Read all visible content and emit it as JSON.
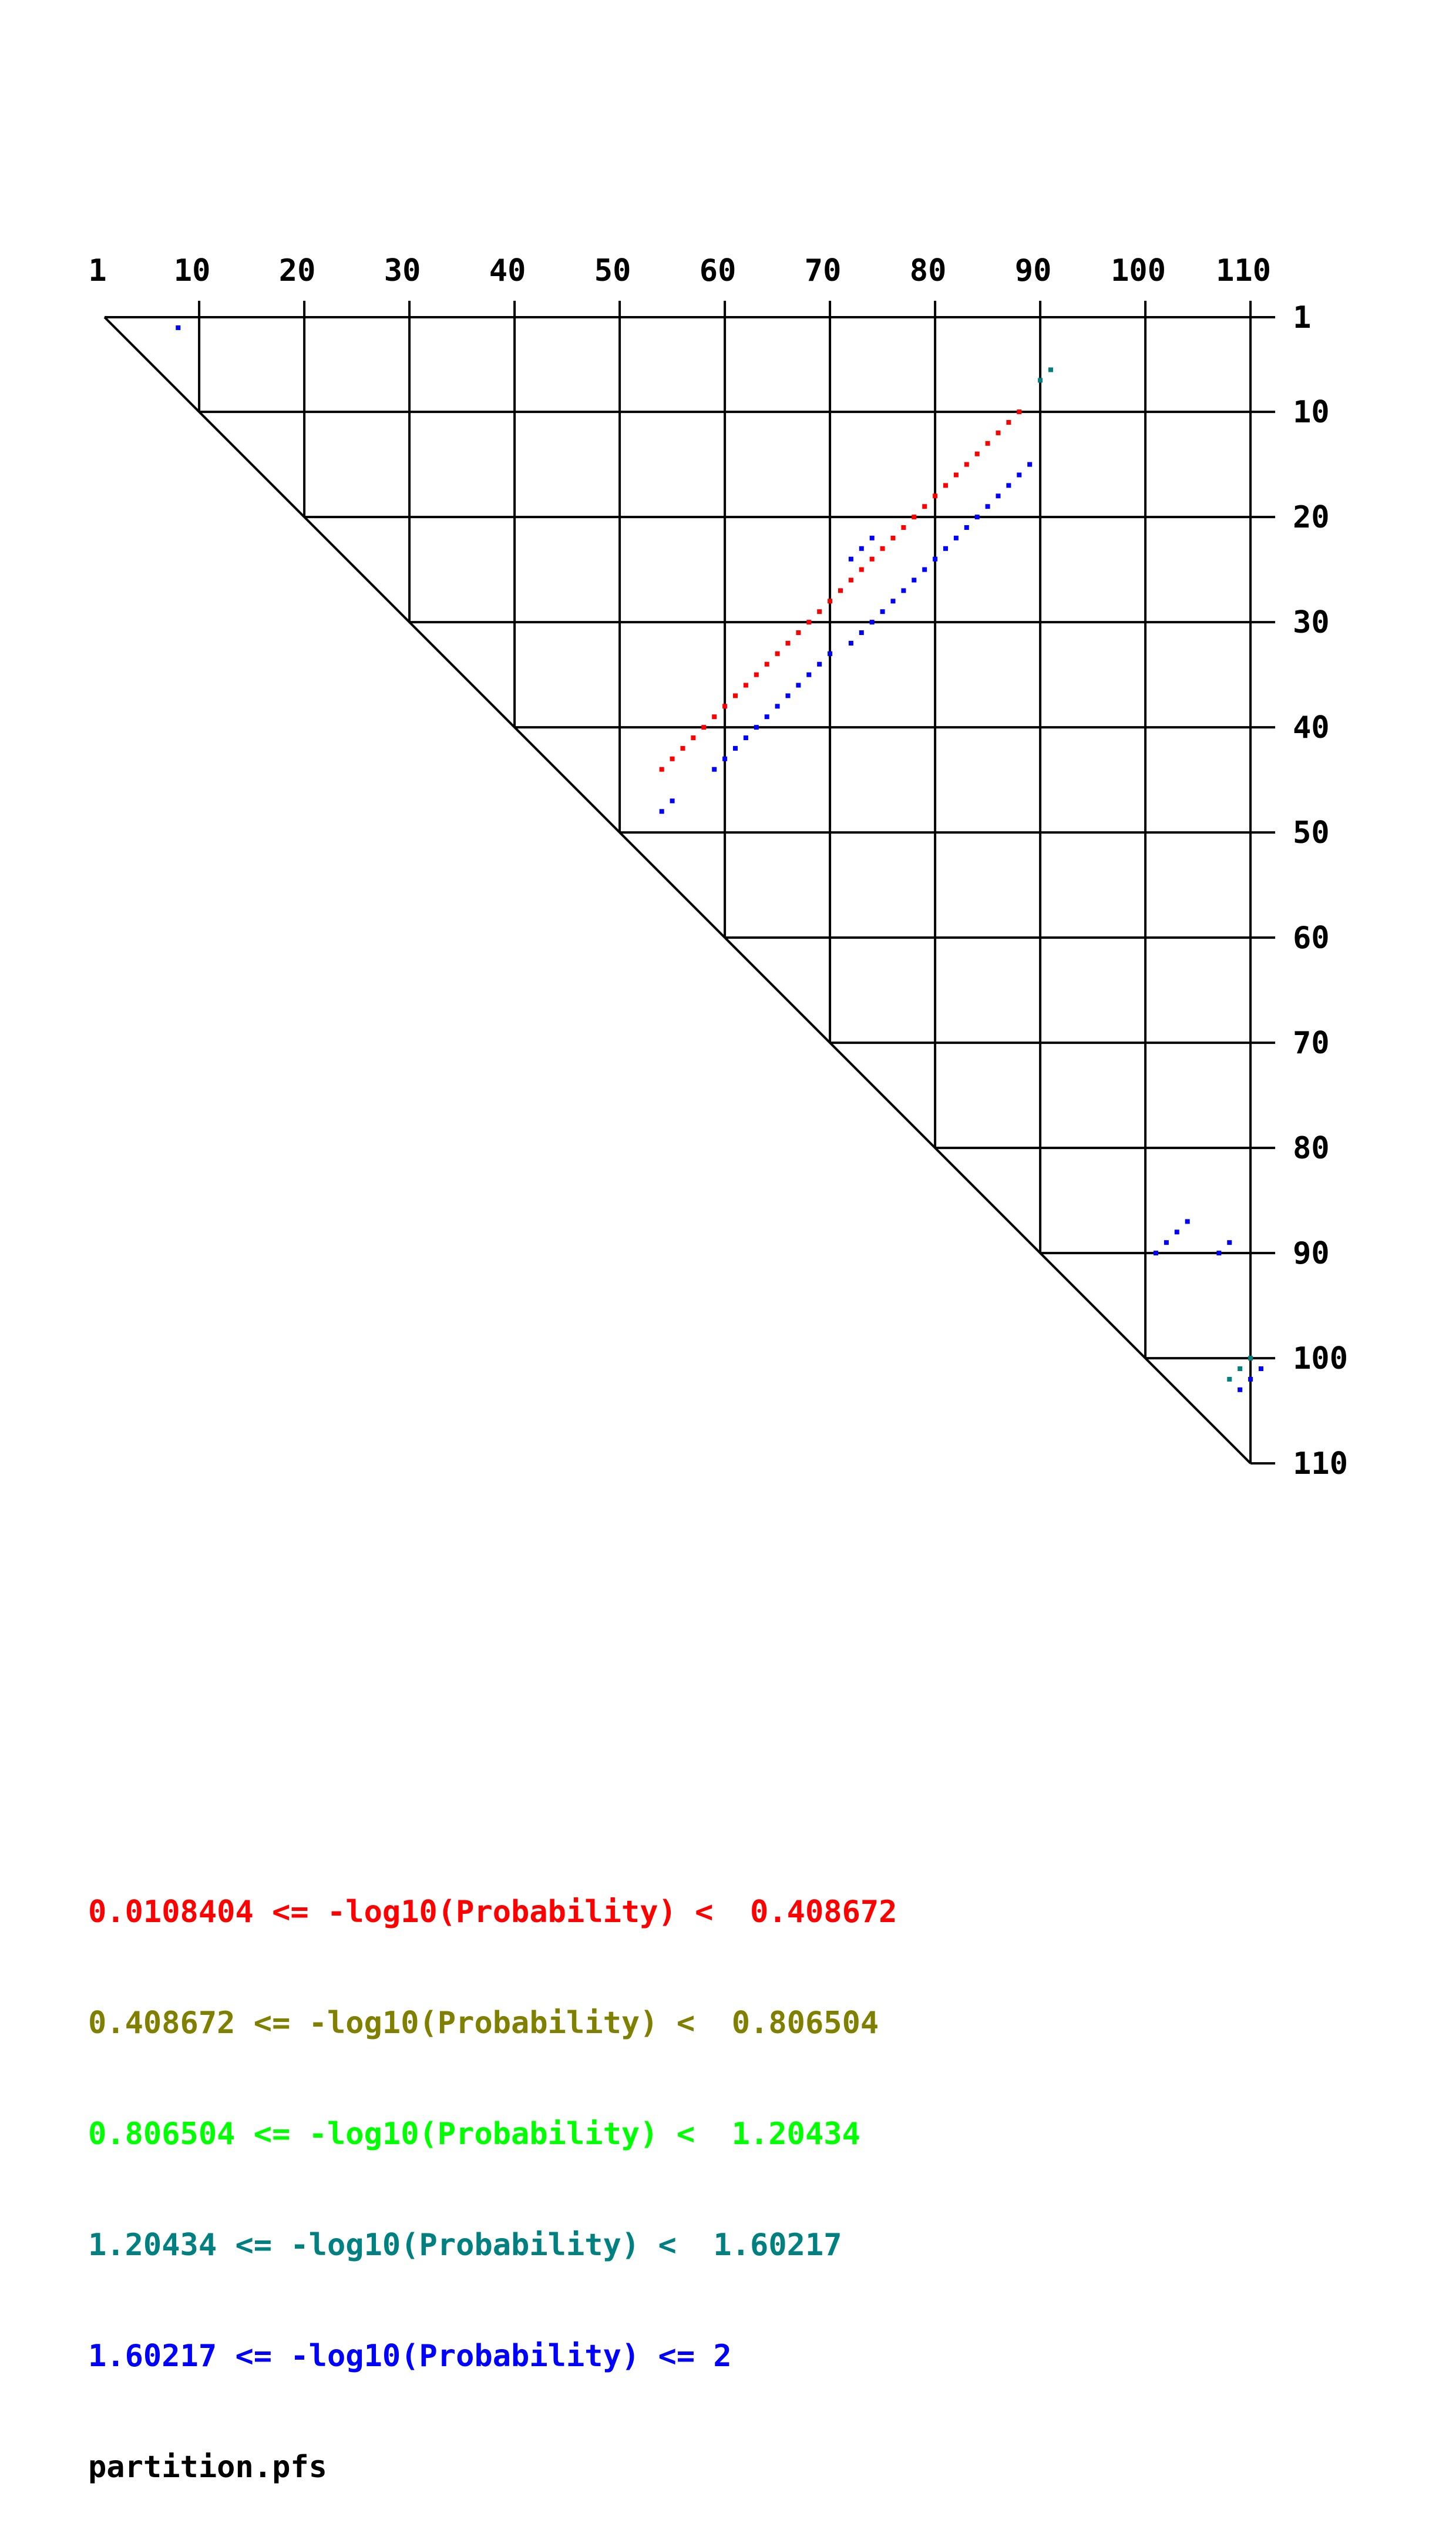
{
  "chart_data": {
    "type": "scatter",
    "title": "",
    "xlabel": "",
    "ylabel": "",
    "sequence_length": 110,
    "grid_step": 10,
    "x_tick_labels": [
      "1",
      "10",
      "20",
      "30",
      "40",
      "50",
      "60",
      "70",
      "80",
      "90",
      "100",
      "110"
    ],
    "y_tick_labels": [
      "1",
      "10",
      "20",
      "30",
      "40",
      "50",
      "60",
      "70",
      "80",
      "90",
      "100",
      "110"
    ],
    "xlim": [
      1,
      110
    ],
    "ylim": [
      1,
      110
    ],
    "grid": true,
    "legend_position": "bottom-left",
    "series": [
      {
        "name": "0.0108404 <= -log10(Probability) <  0.408672",
        "color": "#ff0000",
        "points": [
          [
            88,
            10
          ],
          [
            87,
            11
          ],
          [
            86,
            12
          ],
          [
            85,
            13
          ],
          [
            84,
            14
          ],
          [
            83,
            15
          ],
          [
            82,
            16
          ],
          [
            81,
            17
          ],
          [
            80,
            18
          ],
          [
            79,
            19
          ],
          [
            78,
            20
          ],
          [
            77,
            21
          ],
          [
            76,
            22
          ],
          [
            75,
            23
          ],
          [
            74,
            24
          ],
          [
            73,
            25
          ],
          [
            72,
            26
          ],
          [
            71,
            27
          ],
          [
            70,
            28
          ],
          [
            69,
            29
          ],
          [
            68,
            30
          ],
          [
            67,
            31
          ],
          [
            66,
            32
          ],
          [
            65,
            33
          ],
          [
            64,
            34
          ],
          [
            63,
            35
          ],
          [
            62,
            36
          ],
          [
            61,
            37
          ],
          [
            60,
            38
          ],
          [
            59,
            39
          ],
          [
            58,
            40
          ],
          [
            57,
            41
          ],
          [
            56,
            42
          ],
          [
            55,
            43
          ],
          [
            54,
            44
          ]
        ]
      },
      {
        "name": "0.408672 <= -log10(Probability) <  0.806504",
        "color": "#808000",
        "points": []
      },
      {
        "name": "0.806504 <= -log10(Probability) <  1.20434",
        "color": "#00ff00",
        "points": []
      },
      {
        "name": "1.20434 <= -log10(Probability) <  1.60217",
        "color": "#008080",
        "points": [
          [
            91,
            6
          ],
          [
            90,
            7
          ],
          [
            110,
            100
          ],
          [
            109,
            101
          ],
          [
            108,
            102
          ]
        ]
      },
      {
        "name": "1.60217 <= -log10(Probability) <= 2",
        "color": "#0000ff",
        "points": [
          [
            8,
            2
          ],
          [
            89,
            15
          ],
          [
            88,
            16
          ],
          [
            87,
            17
          ],
          [
            86,
            18
          ],
          [
            85,
            19
          ],
          [
            84,
            20
          ],
          [
            83,
            21
          ],
          [
            82,
            22
          ],
          [
            81,
            23
          ],
          [
            80,
            24
          ],
          [
            79,
            25
          ],
          [
            78,
            26
          ],
          [
            77,
            27
          ],
          [
            76,
            28
          ],
          [
            75,
            29
          ],
          [
            74,
            30
          ],
          [
            73,
            31
          ],
          [
            72,
            32
          ],
          [
            74,
            22
          ],
          [
            73,
            23
          ],
          [
            72,
            24
          ],
          [
            70,
            33
          ],
          [
            69,
            34
          ],
          [
            68,
            35
          ],
          [
            67,
            36
          ],
          [
            66,
            37
          ],
          [
            65,
            38
          ],
          [
            64,
            39
          ],
          [
            63,
            40
          ],
          [
            62,
            41
          ],
          [
            61,
            42
          ],
          [
            60,
            43
          ],
          [
            59,
            44
          ],
          [
            55,
            47
          ],
          [
            54,
            48
          ],
          [
            104,
            87
          ],
          [
            103,
            88
          ],
          [
            102,
            89
          ],
          [
            101,
            90
          ],
          [
            108,
            89
          ],
          [
            107,
            90
          ],
          [
            111,
            101
          ],
          [
            110,
            102
          ],
          [
            109,
            103
          ]
        ]
      }
    ]
  },
  "legend": [
    {
      "text": "0.0108404 <= -log10(Probability) <  0.408672",
      "color": "#ff0000"
    },
    {
      "text": "0.408672 <= -log10(Probability) <  0.806504",
      "color": "#808000"
    },
    {
      "text": "0.806504 <= -log10(Probability) <  1.20434",
      "color": "#00ff00"
    },
    {
      "text": "1.20434 <= -log10(Probability) <  1.60217",
      "color": "#008080"
    },
    {
      "text": "1.60217 <= -log10(Probability) <= 2",
      "color": "#0000ff"
    }
  ],
  "caption": "partition.pfs"
}
